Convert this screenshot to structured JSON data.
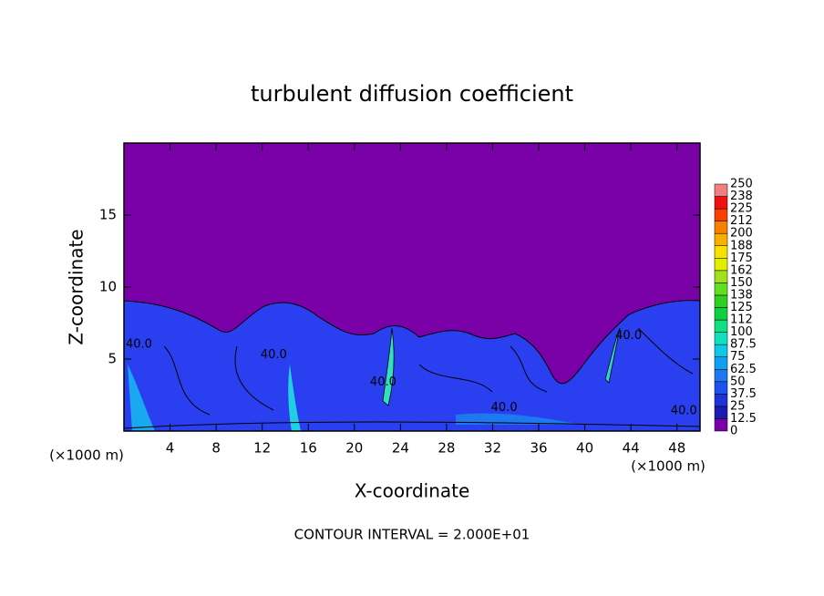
{
  "chart_data": {
    "type": "contour",
    "title": "turbulent diffusion coefficient",
    "x_label": "X-coordinate",
    "y_label": "Z-coordinate",
    "x_unit_left": "(×1000 m)",
    "x_unit_right": "(×1000 m)",
    "xlim": [
      0,
      50
    ],
    "ylim": [
      0,
      20
    ],
    "xticks": [
      4,
      8,
      12,
      16,
      20,
      24,
      28,
      32,
      36,
      40,
      44,
      48
    ],
    "yticks": [
      5,
      10,
      15
    ],
    "background_color": "#7a00a8",
    "colorbar": {
      "levels": [
        0,
        12.5,
        25,
        37.5,
        50,
        62.5,
        75,
        87.5,
        100,
        112,
        125,
        138,
        150,
        162,
        175,
        188,
        200,
        212,
        225,
        238,
        250
      ],
      "colors": [
        "#7a00a8",
        "#1c1cb0",
        "#1e34d8",
        "#1e52f0",
        "#1e78f0",
        "#10a0f0",
        "#10c8e8",
        "#10e0c0",
        "#10e080",
        "#10d040",
        "#30d020",
        "#60e020",
        "#a0e020",
        "#e0f000",
        "#f8e000",
        "#f8b000",
        "#f88000",
        "#f84000",
        "#f01010",
        "#f08080"
      ]
    },
    "contour_labels": [
      {
        "value": 40,
        "label": "40.0",
        "x": 1.3,
        "y": 6
      },
      {
        "value": 40,
        "label": "40.0",
        "x": 13,
        "y": 5.3
      },
      {
        "value": 40,
        "label": "40.0",
        "x": 22.5,
        "y": 3.4
      },
      {
        "value": 40,
        "label": "40.0",
        "x": 33,
        "y": 1.6
      },
      {
        "value": 40,
        "label": "40.0",
        "x": 43.8,
        "y": 6.6
      },
      {
        "value": 40,
        "label": "40.0",
        "x": 48.6,
        "y": 1.4
      }
    ],
    "note": "CONTOUR INTERVAL = 2.000E+01"
  }
}
